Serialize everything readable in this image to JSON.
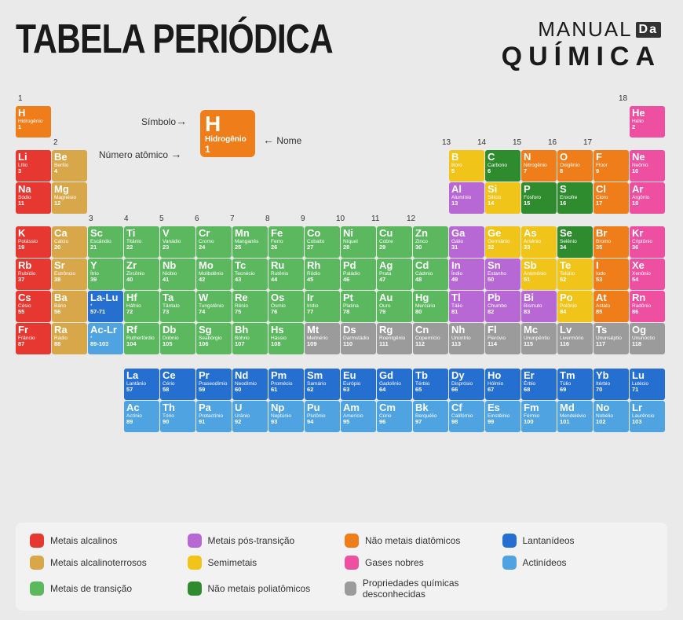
{
  "title": "TABELA PERIÓDICA",
  "logo": {
    "l1": "MANUAL",
    "box": "Da",
    "l2": "QUÍMICA"
  },
  "colors": {
    "am": "#e63731",
    "at": "#d8a749",
    "tm": "#5bb85f",
    "pt": "#b768d5",
    "sm": "#f0c419",
    "pa": "#2e8b2e",
    "di": "#ef7d1a",
    "ng": "#ee4fa0",
    "un": "#9b9b9b",
    "la": "#256fd1",
    "ac": "#4ea3e0",
    "bg": "#eaeaea",
    "leg_bg": "#f2f2f2"
  },
  "sample": {
    "symbol": "H",
    "name": "Hidrogênio",
    "num": "1",
    "lbl_sym": "Símbolo",
    "lbl_name": "Nome",
    "lbl_num": "Número atômico"
  },
  "groups": {
    "1": "1",
    "2": "2",
    "3": "3",
    "4": "4",
    "5": "5",
    "6": "6",
    "7": "7",
    "8": "8",
    "9": "9",
    "10": "10",
    "11": "11",
    "12": "12",
    "13": "13",
    "14": "14",
    "15": "15",
    "16": "16",
    "17": "17",
    "18": "18"
  },
  "rows": [
    [
      {
        "s": "H",
        "n": "Hidrogênio",
        "z": "1",
        "c": "di"
      },
      null,
      null,
      null,
      null,
      null,
      null,
      null,
      null,
      null,
      null,
      null,
      null,
      null,
      null,
      null,
      null,
      {
        "s": "He",
        "n": "Hélio",
        "z": "2",
        "c": "ng"
      }
    ],
    [
      {
        "s": "Li",
        "n": "Lítio",
        "z": "3",
        "c": "am"
      },
      {
        "s": "Be",
        "n": "Berílio",
        "z": "4",
        "c": "at"
      },
      null,
      null,
      null,
      null,
      null,
      null,
      null,
      null,
      null,
      null,
      {
        "s": "B",
        "n": "Boro",
        "z": "5",
        "c": "sm"
      },
      {
        "s": "C",
        "n": "Carbono",
        "z": "6",
        "c": "pa"
      },
      {
        "s": "N",
        "n": "Nitrogênio",
        "z": "7",
        "c": "di"
      },
      {
        "s": "O",
        "n": "Oxigênio",
        "z": "8",
        "c": "di"
      },
      {
        "s": "F",
        "n": "Flúor",
        "z": "9",
        "c": "di"
      },
      {
        "s": "Ne",
        "n": "Neônio",
        "z": "10",
        "c": "ng"
      }
    ],
    [
      {
        "s": "Na",
        "n": "Sódio",
        "z": "11",
        "c": "am"
      },
      {
        "s": "Mg",
        "n": "Magnésio",
        "z": "12",
        "c": "at"
      },
      null,
      null,
      null,
      null,
      null,
      null,
      null,
      null,
      null,
      null,
      {
        "s": "Al",
        "n": "Alumínio",
        "z": "13",
        "c": "pt"
      },
      {
        "s": "Si",
        "n": "Silício",
        "z": "14",
        "c": "sm"
      },
      {
        "s": "P",
        "n": "Fósforo",
        "z": "15",
        "c": "pa"
      },
      {
        "s": "S",
        "n": "Enxofre",
        "z": "16",
        "c": "pa"
      },
      {
        "s": "Cl",
        "n": "Cloro",
        "z": "17",
        "c": "di"
      },
      {
        "s": "Ar",
        "n": "Argônio",
        "z": "18",
        "c": "ng"
      }
    ],
    [
      {
        "s": "K",
        "n": "Potássio",
        "z": "19",
        "c": "am"
      },
      {
        "s": "Ca",
        "n": "Cálcio",
        "z": "20",
        "c": "at"
      },
      {
        "s": "Sc",
        "n": "Escândio",
        "z": "21",
        "c": "tm"
      },
      {
        "s": "Ti",
        "n": "Titânio",
        "z": "22",
        "c": "tm"
      },
      {
        "s": "V",
        "n": "Vanádio",
        "z": "23",
        "c": "tm"
      },
      {
        "s": "Cr",
        "n": "Cromo",
        "z": "24",
        "c": "tm"
      },
      {
        "s": "Mn",
        "n": "Manganês",
        "z": "25",
        "c": "tm"
      },
      {
        "s": "Fe",
        "n": "Ferro",
        "z": "26",
        "c": "tm"
      },
      {
        "s": "Co",
        "n": "Cobalto",
        "z": "27",
        "c": "tm"
      },
      {
        "s": "Ni",
        "n": "Níquel",
        "z": "28",
        "c": "tm"
      },
      {
        "s": "Cu",
        "n": "Cobre",
        "z": "29",
        "c": "tm"
      },
      {
        "s": "Zn",
        "n": "Zinco",
        "z": "30",
        "c": "tm"
      },
      {
        "s": "Ga",
        "n": "Gálio",
        "z": "31",
        "c": "pt"
      },
      {
        "s": "Ge",
        "n": "Germânio",
        "z": "32",
        "c": "sm"
      },
      {
        "s": "As",
        "n": "Arsênio",
        "z": "33",
        "c": "sm"
      },
      {
        "s": "Se",
        "n": "Selênio",
        "z": "34",
        "c": "pa"
      },
      {
        "s": "Br",
        "n": "Bromo",
        "z": "35",
        "c": "di"
      },
      {
        "s": "Kr",
        "n": "Criptônio",
        "z": "36",
        "c": "ng"
      }
    ],
    [
      {
        "s": "Rb",
        "n": "Rubídio",
        "z": "37",
        "c": "am"
      },
      {
        "s": "Sr",
        "n": "Estrôncio",
        "z": "38",
        "c": "at"
      },
      {
        "s": "Y",
        "n": "Ítrio",
        "z": "39",
        "c": "tm"
      },
      {
        "s": "Zr",
        "n": "Zircônio",
        "z": "40",
        "c": "tm"
      },
      {
        "s": "Nb",
        "n": "Nióbio",
        "z": "41",
        "c": "tm"
      },
      {
        "s": "Mo",
        "n": "Molibdênio",
        "z": "42",
        "c": "tm"
      },
      {
        "s": "Tc",
        "n": "Tecnécio",
        "z": "43",
        "c": "tm"
      },
      {
        "s": "Ru",
        "n": "Rutênio",
        "z": "44",
        "c": "tm"
      },
      {
        "s": "Rh",
        "n": "Ródio",
        "z": "45",
        "c": "tm"
      },
      {
        "s": "Pd",
        "n": "Paládio",
        "z": "46",
        "c": "tm"
      },
      {
        "s": "Ag",
        "n": "Prata",
        "z": "47",
        "c": "tm"
      },
      {
        "s": "Cd",
        "n": "Cádmio",
        "z": "48",
        "c": "tm"
      },
      {
        "s": "In",
        "n": "Índio",
        "z": "49",
        "c": "pt"
      },
      {
        "s": "Sn",
        "n": "Estanho",
        "z": "50",
        "c": "pt"
      },
      {
        "s": "Sb",
        "n": "Antimônio",
        "z": "51",
        "c": "sm"
      },
      {
        "s": "Te",
        "n": "Telúrio",
        "z": "52",
        "c": "sm"
      },
      {
        "s": "I",
        "n": "Iodo",
        "z": "53",
        "c": "di"
      },
      {
        "s": "Xe",
        "n": "Xenônio",
        "z": "54",
        "c": "ng"
      }
    ],
    [
      {
        "s": "Cs",
        "n": "Césio",
        "z": "55",
        "c": "am"
      },
      {
        "s": "Ba",
        "n": "Bário",
        "z": "56",
        "c": "at"
      },
      {
        "s": "La-Lu",
        "n": "*",
        "z": "57-71",
        "c": "la"
      },
      {
        "s": "Hf",
        "n": "Háfnio",
        "z": "72",
        "c": "tm"
      },
      {
        "s": "Ta",
        "n": "Tântalo",
        "z": "73",
        "c": "tm"
      },
      {
        "s": "W",
        "n": "Tungstênio",
        "z": "74",
        "c": "tm"
      },
      {
        "s": "Re",
        "n": "Rênio",
        "z": "75",
        "c": "tm"
      },
      {
        "s": "Os",
        "n": "Ósmio",
        "z": "76",
        "c": "tm"
      },
      {
        "s": "Ir",
        "n": "Irídio",
        "z": "77",
        "c": "tm"
      },
      {
        "s": "Pt",
        "n": "Platina",
        "z": "78",
        "c": "tm"
      },
      {
        "s": "Au",
        "n": "Ouro",
        "z": "79",
        "c": "tm"
      },
      {
        "s": "Hg",
        "n": "Mercúrio",
        "z": "80",
        "c": "tm"
      },
      {
        "s": "Tl",
        "n": "Tálio",
        "z": "81",
        "c": "pt"
      },
      {
        "s": "Pb",
        "n": "Chumbo",
        "z": "82",
        "c": "pt"
      },
      {
        "s": "Bi",
        "n": "Bismuto",
        "z": "83",
        "c": "pt"
      },
      {
        "s": "Po",
        "n": "Polônio",
        "z": "84",
        "c": "sm"
      },
      {
        "s": "At",
        "n": "Astato",
        "z": "85",
        "c": "di"
      },
      {
        "s": "Rn",
        "n": "Radônio",
        "z": "86",
        "c": "ng"
      }
    ],
    [
      {
        "s": "Fr",
        "n": "Frâncio",
        "z": "87",
        "c": "am"
      },
      {
        "s": "Ra",
        "n": "Rádio",
        "z": "88",
        "c": "at"
      },
      {
        "s": "Ac-Lr",
        "n": "*",
        "z": "89-103",
        "c": "ac"
      },
      {
        "s": "Rf",
        "n": "Rutherfórdio",
        "z": "104",
        "c": "tm"
      },
      {
        "s": "Db",
        "n": "Dúbnio",
        "z": "105",
        "c": "tm"
      },
      {
        "s": "Sg",
        "n": "Seabórgio",
        "z": "106",
        "c": "tm"
      },
      {
        "s": "Bh",
        "n": "Bóhrio",
        "z": "107",
        "c": "tm"
      },
      {
        "s": "Hs",
        "n": "Hássio",
        "z": "108",
        "c": "tm"
      },
      {
        "s": "Mt",
        "n": "Meitnério",
        "z": "109",
        "c": "un"
      },
      {
        "s": "Ds",
        "n": "Darmstádio",
        "z": "110",
        "c": "un"
      },
      {
        "s": "Rg",
        "n": "Roentgênio",
        "z": "111",
        "c": "un"
      },
      {
        "s": "Cn",
        "n": "Copernício",
        "z": "112",
        "c": "un"
      },
      {
        "s": "Nh",
        "n": "Unúntrio",
        "z": "113",
        "c": "un"
      },
      {
        "s": "Fl",
        "n": "Fleróvio",
        "z": "114",
        "c": "un"
      },
      {
        "s": "Mc",
        "n": "Ununpêntio",
        "z": "115",
        "c": "un"
      },
      {
        "s": "Lv",
        "n": "Livermório",
        "z": "116",
        "c": "un"
      },
      {
        "s": "Ts",
        "n": "Ununséptio",
        "z": "117",
        "c": "un"
      },
      {
        "s": "Og",
        "n": "Ununóctio",
        "z": "118",
        "c": "un"
      }
    ]
  ],
  "fblock": [
    [
      {
        "s": "La",
        "n": "Lantânio",
        "z": "57",
        "c": "la"
      },
      {
        "s": "Ce",
        "n": "Cério",
        "z": "58",
        "c": "la"
      },
      {
        "s": "Pr",
        "n": "Praseodímio",
        "z": "59",
        "c": "la"
      },
      {
        "s": "Nd",
        "n": "Neodímio",
        "z": "60",
        "c": "la"
      },
      {
        "s": "Pm",
        "n": "Promécio",
        "z": "61",
        "c": "la"
      },
      {
        "s": "Sm",
        "n": "Samário",
        "z": "62",
        "c": "la"
      },
      {
        "s": "Eu",
        "n": "Európio",
        "z": "63",
        "c": "la"
      },
      {
        "s": "Gd",
        "n": "Gadolínio",
        "z": "64",
        "c": "la"
      },
      {
        "s": "Tb",
        "n": "Térbio",
        "z": "65",
        "c": "la"
      },
      {
        "s": "Dy",
        "n": "Disprósio",
        "z": "66",
        "c": "la"
      },
      {
        "s": "Ho",
        "n": "Hólmio",
        "z": "67",
        "c": "la"
      },
      {
        "s": "Er",
        "n": "Érbio",
        "z": "68",
        "c": "la"
      },
      {
        "s": "Tm",
        "n": "Túlio",
        "z": "69",
        "c": "la"
      },
      {
        "s": "Yb",
        "n": "Itérbio",
        "z": "70",
        "c": "la"
      },
      {
        "s": "Lu",
        "n": "Lutécio",
        "z": "71",
        "c": "la"
      }
    ],
    [
      {
        "s": "Ac",
        "n": "Actínio",
        "z": "89",
        "c": "ac"
      },
      {
        "s": "Th",
        "n": "Tório",
        "z": "90",
        "c": "ac"
      },
      {
        "s": "Pa",
        "n": "Protactínio",
        "z": "91",
        "c": "ac"
      },
      {
        "s": "U",
        "n": "Urânio",
        "z": "92",
        "c": "ac"
      },
      {
        "s": "Np",
        "n": "Neptúnio",
        "z": "93",
        "c": "ac"
      },
      {
        "s": "Pu",
        "n": "Plutônio",
        "z": "94",
        "c": "ac"
      },
      {
        "s": "Am",
        "n": "Amerício",
        "z": "95",
        "c": "ac"
      },
      {
        "s": "Cm",
        "n": "Cúrio",
        "z": "96",
        "c": "ac"
      },
      {
        "s": "Bk",
        "n": "Berquélio",
        "z": "97",
        "c": "ac"
      },
      {
        "s": "Cf",
        "n": "Califórnio",
        "z": "98",
        "c": "ac"
      },
      {
        "s": "Es",
        "n": "Einstêinio",
        "z": "99",
        "c": "ac"
      },
      {
        "s": "Fm",
        "n": "Férmio",
        "z": "100",
        "c": "ac"
      },
      {
        "s": "Md",
        "n": "Mendelévio",
        "z": "101",
        "c": "ac"
      },
      {
        "s": "No",
        "n": "Nobélio",
        "z": "102",
        "c": "ac"
      },
      {
        "s": "Lr",
        "n": "Laurêncio",
        "z": "103",
        "c": "ac"
      }
    ]
  ],
  "legend": [
    {
      "c": "am",
      "t": "Metais alcalinos"
    },
    {
      "c": "pt",
      "t": "Metais pós-transição"
    },
    {
      "c": "di",
      "t": "Não metais diatômicos"
    },
    {
      "c": "la",
      "t": "Lantanídeos"
    },
    {
      "c": "at",
      "t": "Metais alcalinoterrosos"
    },
    {
      "c": "sm",
      "t": "Semimetais"
    },
    {
      "c": "ng",
      "t": "Gases nobres"
    },
    {
      "c": "ac",
      "t": "Actinídeos"
    },
    {
      "c": "tm",
      "t": "Metais de transição"
    },
    {
      "c": "pa",
      "t": "Não metais poliatômicos"
    },
    {
      "c": "un",
      "t": "Propriedades químicas desconhecidas"
    }
  ]
}
